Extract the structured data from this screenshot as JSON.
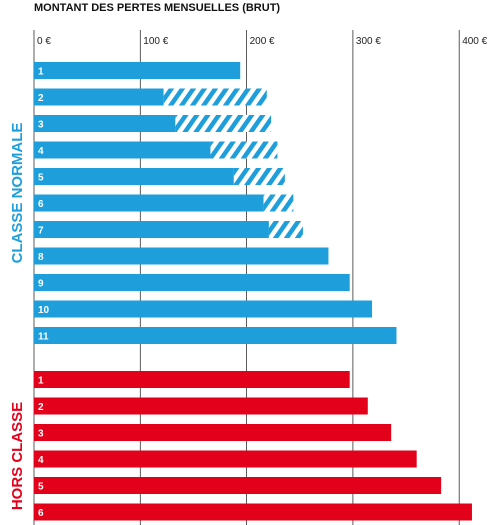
{
  "chart_data": {
    "type": "bar",
    "orientation": "horizontal",
    "title": "MONTANT DES PERTES MENSUELLES (BRUT)",
    "xlim": [
      0,
      400
    ],
    "x_ticks": [
      {
        "value": 0,
        "label": "0 €"
      },
      {
        "value": 100,
        "label": "100 €"
      },
      {
        "value": 200,
        "label": "200 €"
      },
      {
        "value": 300,
        "label": "300 €"
      },
      {
        "value": 400,
        "label": "400 €"
      }
    ],
    "grid": true,
    "groups": [
      {
        "name": "CLASSE NORMALE",
        "color": "#1e9fdb",
        "categories": [
          "1",
          "2",
          "3",
          "4",
          "5",
          "6",
          "7",
          "8",
          "9",
          "10",
          "11"
        ],
        "values": [
          194,
          122,
          133,
          166,
          188,
          216,
          221,
          277,
          297,
          318,
          341
        ],
        "hatched_extension": [
          0,
          97,
          90,
          63,
          48,
          28,
          32,
          0,
          0,
          0,
          0
        ]
      },
      {
        "name": "HORS CLASSE",
        "color": "#e3001b",
        "categories": [
          "1",
          "2",
          "3",
          "4",
          "5",
          "6"
        ],
        "values": [
          297,
          314,
          336,
          360,
          383,
          412
        ]
      }
    ]
  }
}
